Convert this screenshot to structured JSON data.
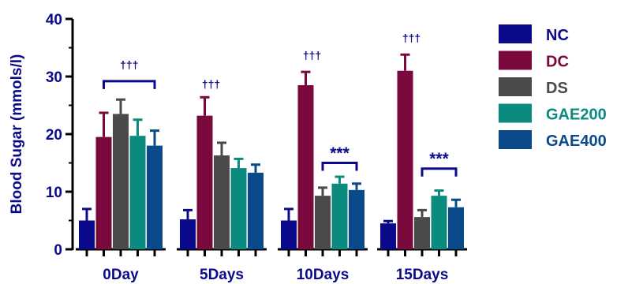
{
  "chart_data": {
    "type": "bar",
    "ylabel": "Blood Sugar (mmols/l)",
    "xlabel": "",
    "ylim": [
      0,
      40
    ],
    "yticks": [
      0,
      10,
      20,
      30,
      40
    ],
    "grid": false,
    "legend_position": "right",
    "categories": [
      "0Day",
      "5Days",
      "10Days",
      "15Days"
    ],
    "series": [
      {
        "name": "NC",
        "color": "#0a0a8a",
        "values": [
          5.0,
          5.2,
          5.0,
          4.5
        ],
        "errors": [
          2.0,
          1.6,
          2.0,
          0.4
        ]
      },
      {
        "name": "DC",
        "color": "#7a0a3e",
        "values": [
          19.5,
          23.2,
          28.5,
          31.0
        ],
        "errors": [
          4.2,
          3.2,
          2.3,
          2.8
        ]
      },
      {
        "name": "DS",
        "color": "#4a4a4a",
        "values": [
          23.5,
          16.3,
          9.3,
          5.6
        ],
        "errors": [
          2.5,
          2.2,
          1.4,
          1.2
        ]
      },
      {
        "name": "GAE200",
        "color": "#0b8a80",
        "values": [
          19.7,
          14.1,
          11.4,
          9.3
        ],
        "errors": [
          2.8,
          1.6,
          1.2,
          0.9
        ]
      },
      {
        "name": "GAE400",
        "color": "#0a4a8a",
        "values": [
          18.0,
          13.3,
          10.3,
          7.3
        ],
        "errors": [
          2.6,
          1.4,
          1.1,
          1.3
        ]
      }
    ],
    "annotations": [
      {
        "text": "†††",
        "category": 0,
        "type": "bracket",
        "from_series": 1,
        "to_series": 4,
        "y": 29.2,
        "label_y": 31.4,
        "color": "#0a0a8a"
      },
      {
        "text": "†††",
        "category": 1,
        "type": "label",
        "series": 1,
        "label_y": 28.0,
        "color": "#0a0a8a"
      },
      {
        "text": "†††",
        "category": 2,
        "type": "label",
        "series": 1,
        "label_y": 33.0,
        "color": "#0a0a8a"
      },
      {
        "text": "***",
        "category": 2,
        "type": "bracket",
        "from_series": 2,
        "to_series": 4,
        "y": 15.0,
        "label_y": 17.0,
        "color": "#0a0a8a"
      },
      {
        "text": "†††",
        "category": 3,
        "type": "label",
        "series": 1,
        "label_y": 36.0,
        "color": "#0a0a8a"
      },
      {
        "text": "***",
        "category": 3,
        "type": "bracket",
        "from_series": 2,
        "to_series": 4,
        "y": 14.0,
        "label_y": 16.0,
        "color": "#0a0a8a"
      }
    ]
  }
}
